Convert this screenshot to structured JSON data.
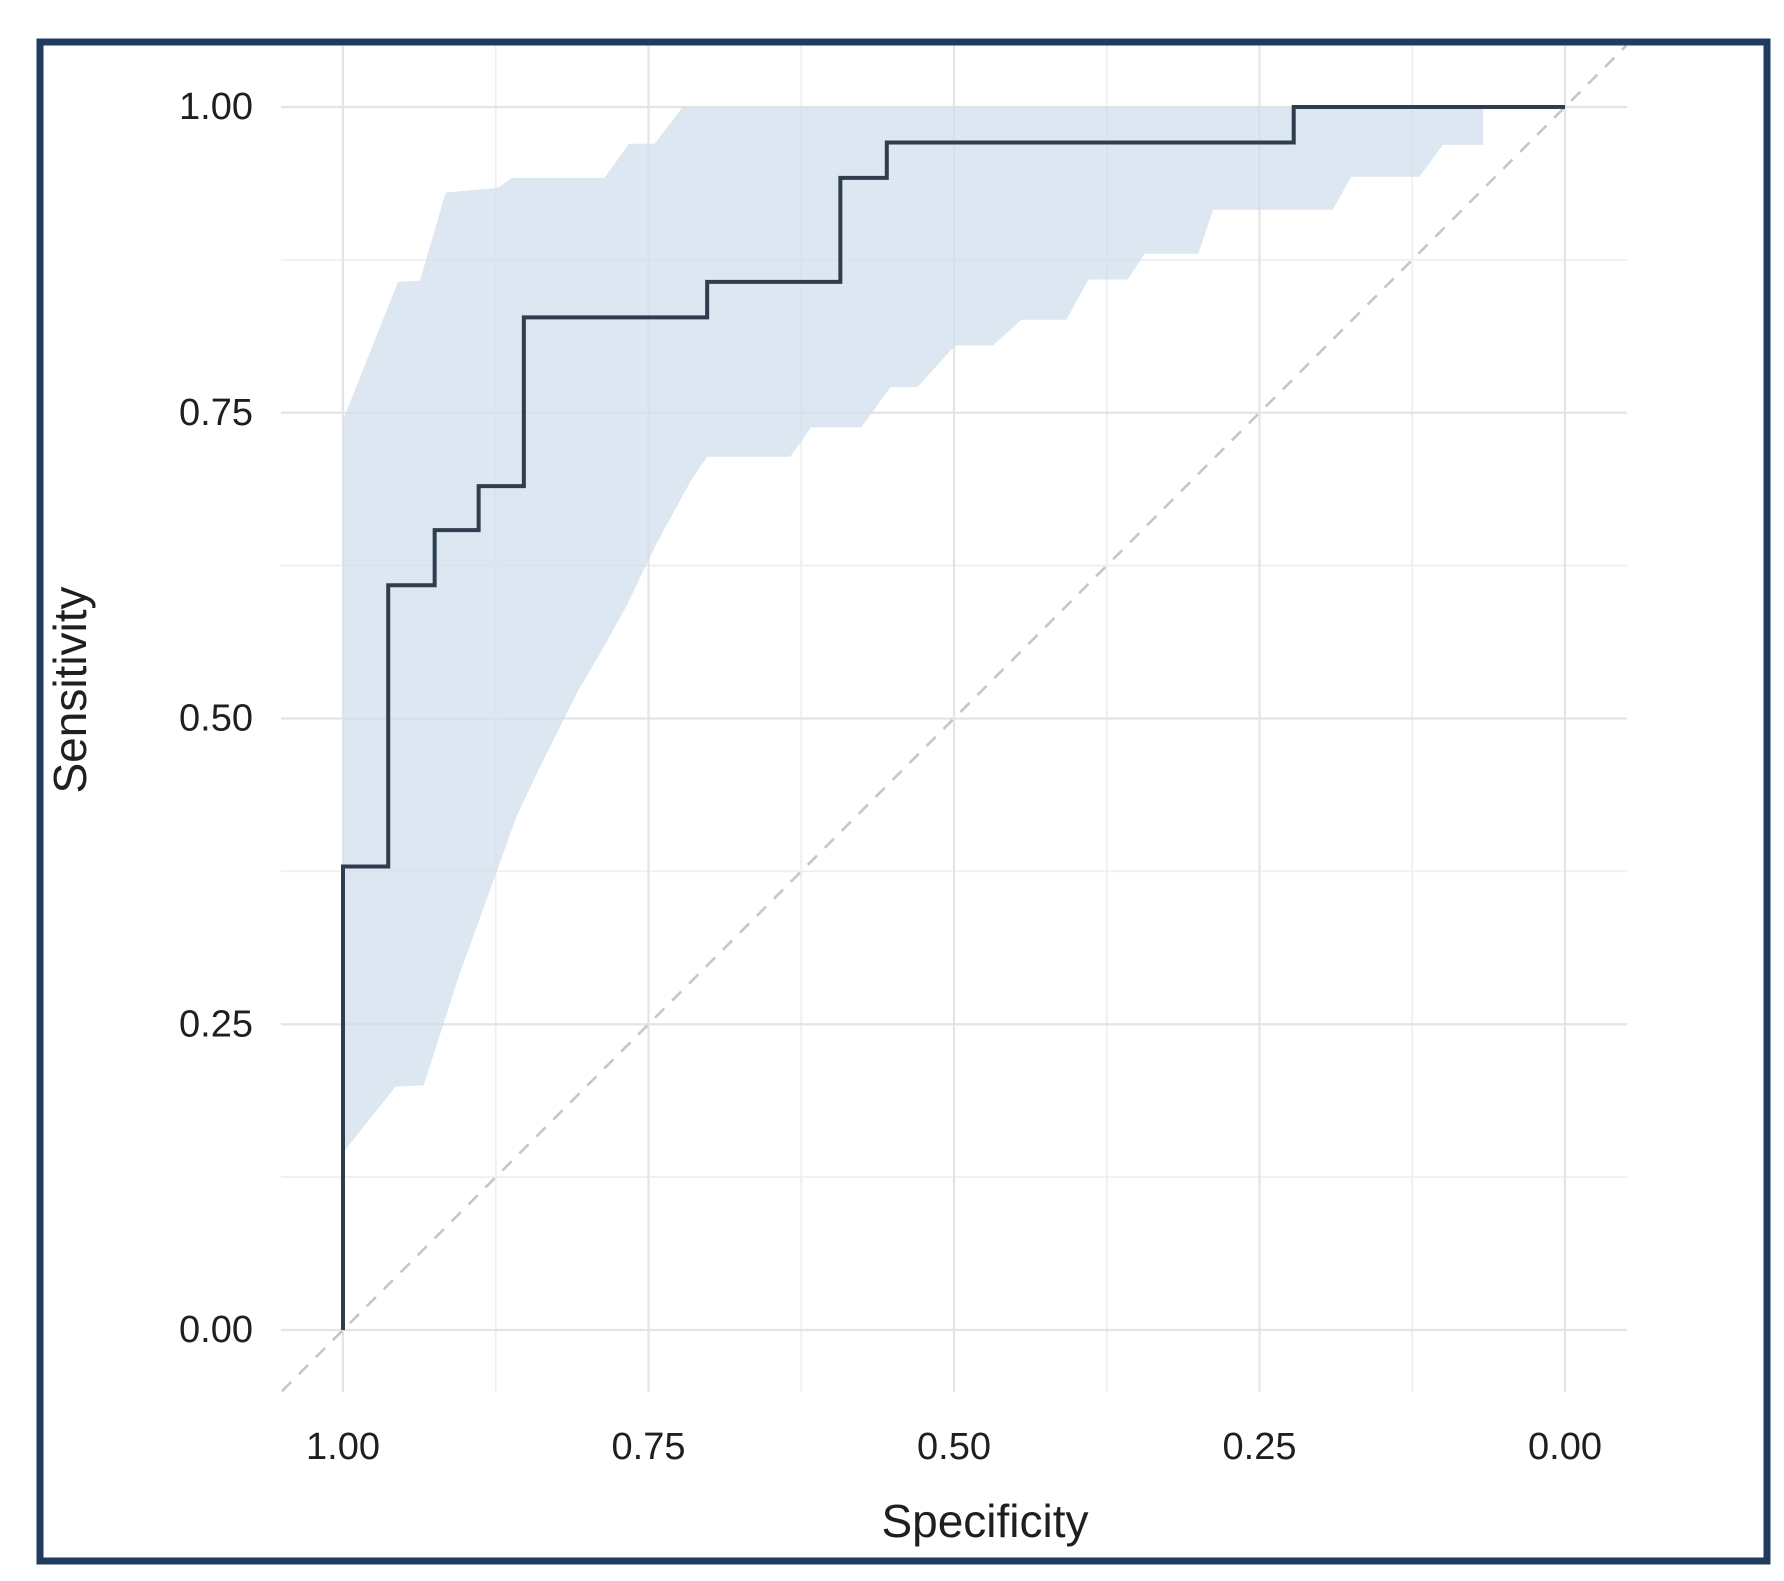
{
  "chart_data": {
    "type": "line",
    "subtype": "roc-step-curve-with-confidence-band",
    "title": "",
    "xlabel": "Specificity",
    "ylabel": "Sensitivity",
    "x_reversed": true,
    "xlim": [
      1.0,
      0.0
    ],
    "ylim": [
      0.0,
      1.0
    ],
    "grid": {
      "major": [
        0.0,
        0.25,
        0.5,
        0.75,
        1.0
      ],
      "minor": [
        0.125,
        0.375,
        0.625,
        0.875
      ]
    },
    "x_ticks": [
      {
        "value": 1.0,
        "label": "1.00"
      },
      {
        "value": 0.75,
        "label": "0.75"
      },
      {
        "value": 0.5,
        "label": "0.50"
      },
      {
        "value": 0.25,
        "label": "0.25"
      },
      {
        "value": 0.0,
        "label": "0.00"
      }
    ],
    "y_ticks": [
      {
        "value": 0.0,
        "label": "0.00"
      },
      {
        "value": 0.25,
        "label": "0.25"
      },
      {
        "value": 0.5,
        "label": "0.50"
      },
      {
        "value": 0.75,
        "label": "0.75"
      },
      {
        "value": 1.0,
        "label": "1.00"
      }
    ],
    "series": [
      {
        "name": "roc-curve",
        "step": "horizontal-then-vertical",
        "points": [
          {
            "specificity": 1.0,
            "sensitivity": 0.0
          },
          {
            "specificity": 1.0,
            "sensitivity": 0.379
          },
          {
            "specificity": 0.963,
            "sensitivity": 0.609
          },
          {
            "specificity": 0.925,
            "sensitivity": 0.654
          },
          {
            "specificity": 0.889,
            "sensitivity": 0.69
          },
          {
            "specificity": 0.852,
            "sensitivity": 0.828
          },
          {
            "specificity": 0.702,
            "sensitivity": 0.857
          },
          {
            "specificity": 0.593,
            "sensitivity": 0.942
          },
          {
            "specificity": 0.555,
            "sensitivity": 0.971
          },
          {
            "specificity": 0.222,
            "sensitivity": 1.0
          },
          {
            "specificity": 0.0,
            "sensitivity": 1.0
          }
        ]
      }
    ],
    "confidence_band": {
      "upper": [
        {
          "specificity": 1.0,
          "sensitivity": 0.744
        },
        {
          "specificity": 0.955,
          "sensitivity": 0.857
        },
        {
          "specificity": 0.937,
          "sensitivity": 0.858
        },
        {
          "specificity": 0.916,
          "sensitivity": 0.93
        },
        {
          "specificity": 0.873,
          "sensitivity": 0.934
        },
        {
          "specificity": 0.862,
          "sensitivity": 0.942
        },
        {
          "specificity": 0.786,
          "sensitivity": 0.942
        },
        {
          "specificity": 0.766,
          "sensitivity": 0.97
        },
        {
          "specificity": 0.745,
          "sensitivity": 0.97
        },
        {
          "specificity": 0.722,
          "sensitivity": 1.0
        },
        {
          "specificity": 0.0,
          "sensitivity": 1.0
        }
      ],
      "lower": [
        {
          "specificity": 1.0,
          "sensitivity": 0.145
        },
        {
          "specificity": 0.957,
          "sensitivity": 0.199
        },
        {
          "specificity": 0.934,
          "sensitivity": 0.2
        },
        {
          "specificity": 0.905,
          "sensitivity": 0.29
        },
        {
          "specificity": 0.885,
          "sensitivity": 0.345
        },
        {
          "specificity": 0.858,
          "sensitivity": 0.42
        },
        {
          "specificity": 0.838,
          "sensitivity": 0.462
        },
        {
          "specificity": 0.808,
          "sensitivity": 0.522
        },
        {
          "specificity": 0.788,
          "sensitivity": 0.556
        },
        {
          "specificity": 0.768,
          "sensitivity": 0.592
        },
        {
          "specificity": 0.744,
          "sensitivity": 0.642
        },
        {
          "specificity": 0.715,
          "sensitivity": 0.695
        },
        {
          "specificity": 0.702,
          "sensitivity": 0.714
        },
        {
          "specificity": 0.634,
          "sensitivity": 0.714
        },
        {
          "specificity": 0.617,
          "sensitivity": 0.738
        },
        {
          "specificity": 0.576,
          "sensitivity": 0.738
        },
        {
          "specificity": 0.552,
          "sensitivity": 0.771
        },
        {
          "specificity": 0.53,
          "sensitivity": 0.771
        },
        {
          "specificity": 0.499,
          "sensitivity": 0.805
        },
        {
          "specificity": 0.468,
          "sensitivity": 0.805
        },
        {
          "specificity": 0.445,
          "sensitivity": 0.826
        },
        {
          "specificity": 0.408,
          "sensitivity": 0.826
        },
        {
          "specificity": 0.39,
          "sensitivity": 0.859
        },
        {
          "specificity": 0.358,
          "sensitivity": 0.859
        },
        {
          "specificity": 0.344,
          "sensitivity": 0.88
        },
        {
          "specificity": 0.3,
          "sensitivity": 0.88
        },
        {
          "specificity": 0.288,
          "sensitivity": 0.916
        },
        {
          "specificity": 0.19,
          "sensitivity": 0.916
        },
        {
          "specificity": 0.175,
          "sensitivity": 0.943
        },
        {
          "specificity": 0.119,
          "sensitivity": 0.943
        },
        {
          "specificity": 0.1,
          "sensitivity": 0.969
        },
        {
          "specificity": 0.067,
          "sensitivity": 0.969
        },
        {
          "specificity": 0.067,
          "sensitivity": 1.0
        }
      ]
    },
    "diagonal_reference": {
      "style": "dashed",
      "from": {
        "specificity": 1.05,
        "sensitivity": -0.05
      },
      "to": {
        "specificity": -0.05,
        "sensitivity": 1.05
      }
    },
    "legend": null,
    "colors": {
      "curve": "#2e3e4e",
      "band": "#cfdeec",
      "band_opacity": 0.72,
      "grid_major": "#e4e4e4",
      "grid_minor": "#efefef",
      "diagonal": "#c6c6c6",
      "border": "#203a60",
      "text": "#1f1f1f",
      "background": "#ffffff"
    }
  }
}
